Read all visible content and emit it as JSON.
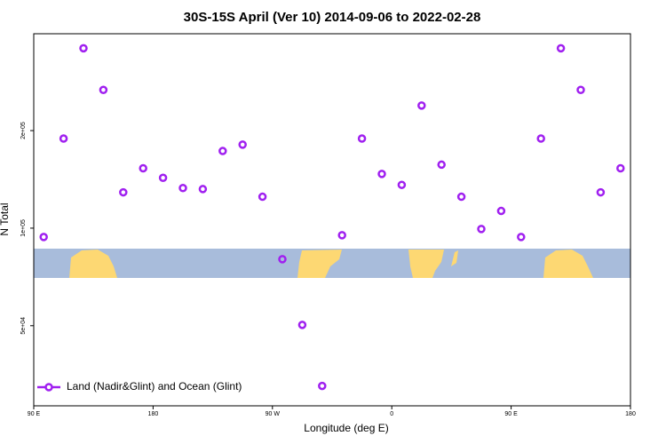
{
  "chart_data": {
    "type": "scatter",
    "title": "30S-15S April (Ver 10)   2014-09-06 to 2022-02-28",
    "x_label": "Longitude (deg E)",
    "y_label": "N Total",
    "x": [
      97.5,
      112.5,
      127.5,
      142.5,
      157.5,
      172.5,
      187.5,
      202.5,
      217.5,
      232.5,
      247.5,
      262.5,
      277.5,
      292.5,
      307.5,
      322.5,
      337.5,
      352.5,
      367.5,
      382.5,
      397.5,
      412.5,
      427.5,
      442.5,
      457.5,
      472.5,
      487.5,
      502.5,
      517.5,
      532.5
    ],
    "series": [
      {
        "name": "Land (Nadir&Glint) and Ocean (Glint)",
        "color": "#a020f0",
        "values": [
          93900,
          189000,
          359000,
          267000,
          129000,
          153000,
          143000,
          133000,
          132000,
          173000,
          181000,
          125000,
          80200,
          50300,
          32600,
          95100,
          189000,
          147000,
          136000,
          239000,
          157000,
          125000,
          99400,
          113000,
          93900,
          189000,
          359000,
          267000,
          129000,
          153000
        ]
      }
    ],
    "xlim": [
      90,
      540
    ],
    "xticks": [
      {
        "value": 90,
        "label": "90 E"
      },
      180,
      {
        "value": 270,
        "label": "90 W"
      },
      {
        "value": 360,
        "label": "0"
      },
      {
        "value": 450,
        "label": "90 E"
      },
      {
        "value": 540,
        "label": "180"
      }
    ],
    "ylim": [
      28300,
      398000
    ],
    "yticks": [
      {
        "value": 50000,
        "label": "5e+04"
      },
      {
        "value": 100000,
        "label": "1e+05"
      },
      {
        "value": 200000,
        "label": "2e+05"
      }
    ],
    "log_y": true,
    "legend": "bottom-left"
  }
}
